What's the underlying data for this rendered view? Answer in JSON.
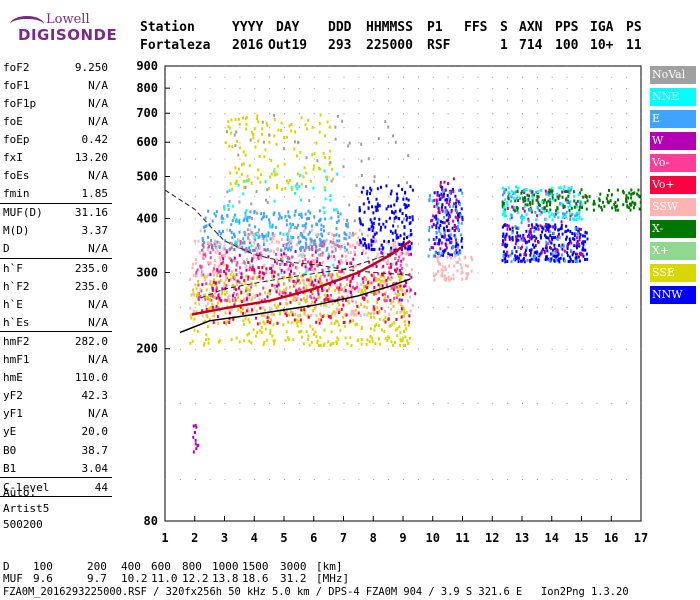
{
  "logo": {
    "line1": "Lowell",
    "line2": "DIGISONDE"
  },
  "header": {
    "labels": [
      "Station",
      "YYYY",
      "DAY",
      "DDD",
      "HHMMSS",
      "P1",
      "FFS",
      "S",
      "AXN",
      "PPS",
      "IGA",
      "PS"
    ],
    "values": [
      "Fortaleza",
      "2016",
      "Out19",
      "293",
      "225000",
      "RSF",
      "1",
      "714",
      "100",
      "10+",
      "11"
    ]
  },
  "params": {
    "group1": [
      {
        "name": "foF2",
        "value": "9.250"
      },
      {
        "name": "foF1",
        "value": "N/A"
      },
      {
        "name": "foF1p",
        "value": "N/A"
      },
      {
        "name": "foE",
        "value": "N/A"
      },
      {
        "name": "foEp",
        "value": "0.42"
      },
      {
        "name": "fxI",
        "value": "13.20"
      },
      {
        "name": "foEs",
        "value": "N/A"
      },
      {
        "name": "fmin",
        "value": "1.85"
      }
    ],
    "group2": [
      {
        "name": "MUF(D)",
        "value": "31.16"
      },
      {
        "name": "M(D)",
        "value": "3.37"
      },
      {
        "name": "D",
        "value": "N/A"
      }
    ],
    "group3": [
      {
        "name": "h`F",
        "value": "235.0"
      },
      {
        "name": "h`F2",
        "value": "235.0"
      },
      {
        "name": "h`E",
        "value": "N/A"
      },
      {
        "name": "h`Es",
        "value": "N/A"
      }
    ],
    "group4": [
      {
        "name": "hmF2",
        "value": "282.0"
      },
      {
        "name": "hmF1",
        "value": "N/A"
      },
      {
        "name": "hmE",
        "value": "110.0"
      },
      {
        "name": "yF2",
        "value": "42.3"
      },
      {
        "name": "yF1",
        "value": "N/A"
      },
      {
        "name": "yE",
        "value": "20.0"
      },
      {
        "name": "B0",
        "value": "38.7"
      },
      {
        "name": "B1",
        "value": "3.04"
      }
    ],
    "group5": [
      {
        "name": "C-level",
        "value": "44"
      }
    ],
    "auto": [
      "Auto:",
      "Artist5",
      "500200"
    ]
  },
  "legend": [
    {
      "label": "NoVal",
      "color": "#a0a0a0"
    },
    {
      "label": "NNE",
      "color": "#00ffff"
    },
    {
      "label": "E",
      "color": "#3fa3ff"
    },
    {
      "label": "W",
      "color": "#b400b4"
    },
    {
      "label": "Vo-",
      "color": "#ff3c96"
    },
    {
      "label": "Vo+",
      "color": "#ff0040"
    },
    {
      "label": "SSW",
      "color": "#ffb4b4"
    },
    {
      "label": "X-",
      "color": "#007800"
    },
    {
      "label": "X+",
      "color": "#90d890"
    },
    {
      "label": "SSE",
      "color": "#d8d800"
    },
    {
      "label": "NNW",
      "color": "#0000ff"
    }
  ],
  "chart_data": {
    "type": "scatter",
    "xlim": [
      1,
      17
    ],
    "ylim": [
      80,
      900
    ],
    "x_ticks": [
      1,
      2,
      3,
      4,
      5,
      6,
      7,
      8,
      9,
      10,
      11,
      12,
      13,
      14,
      15,
      16,
      17
    ],
    "y_ticks": [
      80,
      200,
      300,
      400,
      500,
      600,
      700,
      800,
      900
    ],
    "grid": true,
    "legend_position": "right",
    "profile_curve": [
      [
        1.5,
        218
      ],
      [
        2.5,
        232
      ],
      [
        4,
        240
      ],
      [
        6,
        252
      ],
      [
        7.5,
        265
      ],
      [
        8.5,
        278
      ],
      [
        9.25,
        290
      ]
    ],
    "trace_fit": [
      [
        1.9,
        240
      ],
      [
        3,
        248
      ],
      [
        4.5,
        258
      ],
      [
        6,
        275
      ],
      [
        7.5,
        300
      ],
      [
        8.6,
        330
      ],
      [
        9.25,
        355
      ]
    ],
    "dashed_profile": [
      [
        1,
        465
      ],
      [
        2,
        420
      ],
      [
        2.5,
        385
      ],
      [
        3,
        355
      ],
      [
        4,
        330
      ],
      [
        5,
        318
      ],
      [
        6.2,
        312
      ],
      [
        7,
        305
      ],
      [
        8,
        300
      ],
      [
        9,
        297
      ],
      [
        9.2,
        296
      ]
    ],
    "dashed_lower": [
      [
        2.2,
        262
      ],
      [
        3,
        275
      ],
      [
        4.2,
        285
      ],
      [
        5.5,
        295
      ],
      [
        7,
        305
      ],
      [
        8.5,
        330
      ],
      [
        9.2,
        350
      ]
    ],
    "clusters": [
      {
        "color": "#3fa3ff",
        "x": [
          2.2,
          7.2
        ],
        "y": [
          340,
          420
        ],
        "density": 260
      },
      {
        "color": "#00ffff",
        "x": [
          2.5,
          6.8
        ],
        "y": [
          300,
          520
        ],
        "density": 70
      },
      {
        "color": "#ff3c96",
        "x": [
          2.0,
          9.2
        ],
        "y": [
          260,
          360
        ],
        "density": 320
      },
      {
        "color": "#ffb4b4",
        "x": [
          1.8,
          9.3
        ],
        "y": [
          240,
          380
        ],
        "density": 420
      },
      {
        "color": "#d8d800",
        "x": [
          1.8,
          9.2
        ],
        "y": [
          205,
          300
        ],
        "density": 420
      },
      {
        "color": "#d8d800",
        "x": [
          3.0,
          6.7
        ],
        "y": [
          470,
          700
        ],
        "density": 130
      },
      {
        "color": "#ff0040",
        "x": [
          2.2,
          9.2
        ],
        "y": [
          230,
          320
        ],
        "density": 160
      },
      {
        "color": "#b400b4",
        "x": [
          2.4,
          9.4
        ],
        "y": [
          260,
          340
        ],
        "density": 110
      },
      {
        "color": "#a0a0a0",
        "x": [
          3.0,
          9.2
        ],
        "y": [
          320,
          700
        ],
        "density": 90
      },
      {
        "color": "#0000ff",
        "x": [
          7.5,
          9.3
        ],
        "y": [
          340,
          480
        ],
        "density": 160
      },
      {
        "color": "#0000ff",
        "x": [
          10.0,
          11.0
        ],
        "y": [
          330,
          480
        ],
        "density": 110
      },
      {
        "color": "#b400b4",
        "x": [
          9.9,
          10.8
        ],
        "y": [
          340,
          500
        ],
        "density": 60
      },
      {
        "color": "#3fa3ff",
        "x": [
          9.8,
          11.0
        ],
        "y": [
          330,
          480
        ],
        "density": 50
      },
      {
        "color": "#ffb4b4",
        "x": [
          10.0,
          11.3
        ],
        "y": [
          290,
          330
        ],
        "density": 60
      },
      {
        "color": "#0000ff",
        "x": [
          12.3,
          15.2
        ],
        "y": [
          320,
          390
        ],
        "density": 260
      },
      {
        "color": "#b400b4",
        "x": [
          12.3,
          15.0
        ],
        "y": [
          330,
          470
        ],
        "density": 90
      },
      {
        "color": "#007800",
        "x": [
          12.3,
          17.0
        ],
        "y": [
          420,
          470
        ],
        "density": 170
      },
      {
        "color": "#00ffff",
        "x": [
          12.3,
          15.0
        ],
        "y": [
          400,
          480
        ],
        "density": 90
      },
      {
        "color": "#3fa3ff",
        "x": [
          12.3,
          15.0
        ],
        "y": [
          320,
          470
        ],
        "density": 70
      },
      {
        "color": "#b400b4",
        "x": [
          1.9,
          2.1
        ],
        "y": [
          110,
          135
        ],
        "density": 12
      }
    ]
  },
  "footer": {
    "d_label": "D",
    "d_values": [
      "100",
      "200",
      "400",
      "600",
      "800",
      "1000",
      "1500",
      "3000"
    ],
    "d_unit": "[km]",
    "muf_label": "MUF",
    "muf_values": [
      "9.6",
      "9.7",
      "10.2",
      "11.0",
      "12.2",
      "13.8",
      "18.6",
      "31.2"
    ],
    "muf_unit": "[MHz]",
    "info": "FZA0M_2016293225000.RSF / 320fx256h 50 kHz 5.0 km / DPS-4 FZA0M 904 / 3.9 S 321.6 E   Ion2Png 1.3.20"
  }
}
